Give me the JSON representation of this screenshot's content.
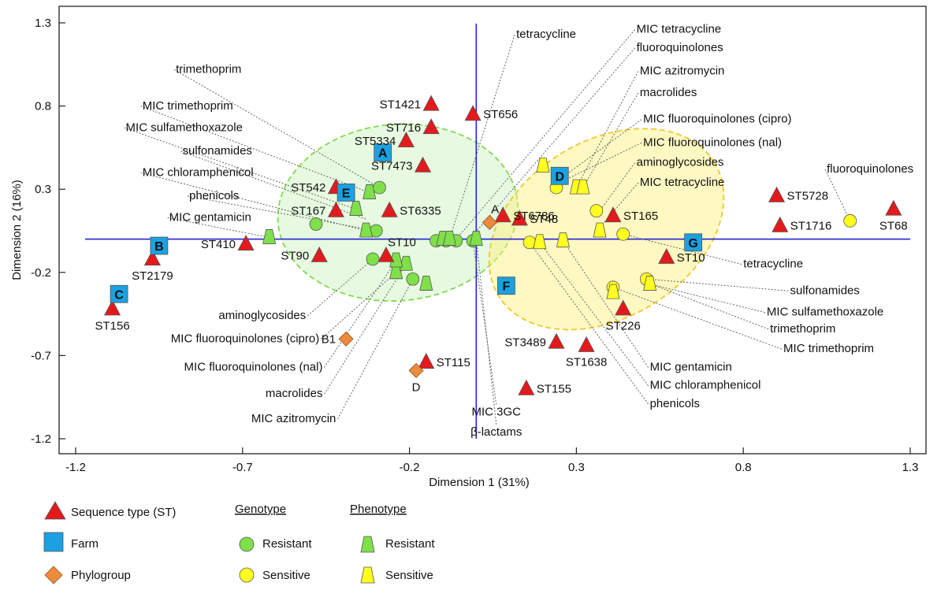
{
  "chart_data": {
    "type": "scatter",
    "xlabel": "Dimension 1 (31%)",
    "ylabel": "Dimension 2 (16%)",
    "xlim": [
      -1.2,
      1.3
    ],
    "ylim": [
      -1.2,
      1.3
    ],
    "xticks": [
      -1.2,
      -0.7,
      -0.2,
      0.3,
      0.8,
      1.3
    ],
    "xtick_labels": [
      "-1.2",
      "-0.7",
      "-0.2",
      "0.3",
      "0.8",
      "1.3"
    ],
    "yticks": [
      -1.2,
      -0.7,
      -0.2,
      0.3,
      0.8,
      1.3
    ],
    "ytick_labels": [
      "-1.2",
      "-0.7",
      "-0.2",
      "0.3",
      "0.8",
      "1.3"
    ],
    "colors": {
      "st": "#e31a1c",
      "farm": "#1ba1e2",
      "phylogroup": "#ee8a3c",
      "resistant": "#7fe04a",
      "sensitive": "#ffff1f",
      "axis": "#2323d6",
      "ellipse_green": "#7ddc4f",
      "ellipse_yellow": "#f0c92a"
    },
    "ellipses": [
      {
        "group": "resistant",
        "cx": -0.235,
        "cy": 0.16,
        "rx": 0.72,
        "ry": 0.53,
        "rot": -5
      },
      {
        "group": "sensitive",
        "cx": 0.39,
        "cy": 0.06,
        "rx": 0.76,
        "ry": 0.53,
        "rot": -32
      }
    ],
    "sequence_types": [
      {
        "label": "ST1421",
        "x": -0.135,
        "y": 0.81,
        "pos": "left"
      },
      {
        "label": "ST656",
        "x": -0.01,
        "y": 0.75,
        "pos": "right"
      },
      {
        "label": "ST716",
        "x": -0.135,
        "y": 0.67,
        "pos": "left"
      },
      {
        "label": "ST5334",
        "x": -0.21,
        "y": 0.59,
        "pos": "left"
      },
      {
        "label": "ST7473",
        "x": -0.16,
        "y": 0.44,
        "pos": "left"
      },
      {
        "label": "ST542",
        "x": -0.42,
        "y": 0.31,
        "pos": "left"
      },
      {
        "label": "ST167",
        "x": -0.42,
        "y": 0.17,
        "pos": "left"
      },
      {
        "label": "ST6335",
        "x": -0.26,
        "y": 0.17,
        "pos": "right"
      },
      {
        "label": "ST6786",
        "x": 0.08,
        "y": 0.14,
        "pos": "right"
      },
      {
        "label": "ST48",
        "x": 0.13,
        "y": 0.12,
        "pos": "right"
      },
      {
        "label": "ST165",
        "x": 0.41,
        "y": 0.14,
        "pos": "right"
      },
      {
        "label": "ST5728",
        "x": 0.9,
        "y": 0.26,
        "pos": "right"
      },
      {
        "label": "ST1716",
        "x": 0.91,
        "y": 0.08,
        "pos": "right"
      },
      {
        "label": "ST68",
        "x": 1.25,
        "y": 0.18,
        "pos": "below"
      },
      {
        "label": "ST410",
        "x": -0.69,
        "y": -0.03,
        "pos": "left"
      },
      {
        "label": "ST90",
        "x": -0.47,
        "y": -0.1,
        "pos": "left"
      },
      {
        "label": "ST10",
        "x": -0.27,
        "y": -0.1,
        "pos": "above"
      },
      {
        "label": "ST2179",
        "x": -0.97,
        "y": -0.12,
        "pos": "below"
      },
      {
        "label": "ST156",
        "x": -1.09,
        "y": -0.42,
        "pos": "below"
      },
      {
        "label": "ST10",
        "x": 0.57,
        "y": -0.11,
        "pos": "right"
      },
      {
        "label": "ST226",
        "x": 0.44,
        "y": -0.42,
        "pos": "below"
      },
      {
        "label": "ST3489",
        "x": 0.24,
        "y": -0.62,
        "pos": "left"
      },
      {
        "label": "ST1638",
        "x": 0.33,
        "y": -0.64,
        "pos": "below"
      },
      {
        "label": "ST115",
        "x": -0.15,
        "y": -0.74,
        "pos": "right"
      },
      {
        "label": "ST155",
        "x": 0.15,
        "y": -0.9,
        "pos": "right"
      }
    ],
    "farms": [
      {
        "label": "A",
        "x": -0.28,
        "y": 0.52
      },
      {
        "label": "B",
        "x": -0.95,
        "y": -0.04
      },
      {
        "label": "C",
        "x": -1.07,
        "y": -0.33
      },
      {
        "label": "D",
        "x": 0.25,
        "y": 0.38
      },
      {
        "label": "E",
        "x": -0.39,
        "y": 0.28
      },
      {
        "label": "F",
        "x": 0.09,
        "y": -0.28
      },
      {
        "label": "G",
        "x": 0.65,
        "y": -0.02
      }
    ],
    "phylogroups": [
      {
        "label": "A",
        "x": 0.04,
        "y": 0.1,
        "pos": "above"
      },
      {
        "label": "B1",
        "x": -0.39,
        "y": -0.6,
        "pos": "left"
      },
      {
        "label": "D",
        "x": -0.18,
        "y": -0.79,
        "pos": "below"
      }
    ],
    "genotype_resistant": [
      {
        "x": -0.29,
        "y": 0.31
      },
      {
        "x": -0.48,
        "y": 0.09
      },
      {
        "x": -0.3,
        "y": 0.05
      },
      {
        "x": -0.31,
        "y": -0.12
      },
      {
        "x": -0.19,
        "y": -0.24
      },
      {
        "x": -0.12,
        "y": -0.01
      },
      {
        "x": -0.09,
        "y": -0.01
      },
      {
        "x": -0.06,
        "y": -0.01
      },
      {
        "x": -0.01,
        "y": -0.01
      }
    ],
    "genotype_sensitive": [
      {
        "x": 0.24,
        "y": 0.31
      },
      {
        "x": 0.36,
        "y": 0.17
      },
      {
        "x": 0.44,
        "y": 0.03
      },
      {
        "x": 0.16,
        "y": -0.02
      },
      {
        "x": 0.41,
        "y": -0.29
      },
      {
        "x": 0.51,
        "y": -0.24
      },
      {
        "x": 1.12,
        "y": 0.11
      }
    ],
    "phenotype_resistant": [
      {
        "x": -0.32,
        "y": 0.28
      },
      {
        "x": -0.36,
        "y": 0.18
      },
      {
        "x": -0.33,
        "y": 0.05
      },
      {
        "x": -0.62,
        "y": 0.01
      },
      {
        "x": -0.1,
        "y": 0.0
      },
      {
        "x": -0.08,
        "y": 0.0
      },
      {
        "x": 0.0,
        "y": 0.0
      },
      {
        "x": -0.24,
        "y": -0.2
      },
      {
        "x": -0.21,
        "y": -0.15
      },
      {
        "x": -0.24,
        "y": -0.13
      },
      {
        "x": -0.15,
        "y": -0.27
      }
    ],
    "phenotype_sensitive": [
      {
        "x": 0.2,
        "y": 0.44
      },
      {
        "x": 0.3,
        "y": 0.31
      },
      {
        "x": 0.32,
        "y": 0.31
      },
      {
        "x": 0.37,
        "y": 0.05
      },
      {
        "x": 0.19,
        "y": -0.02
      },
      {
        "x": 0.26,
        "y": -0.01
      },
      {
        "x": 0.41,
        "y": -0.32
      },
      {
        "x": 0.52,
        "y": -0.27
      }
    ],
    "variable_labels": [
      {
        "text": "tetracycline",
        "lx": 0.12,
        "ly": 1.21,
        "anchor": "start",
        "px": -0.08,
        "py": 0.0
      },
      {
        "text": "MIC tetracycline",
        "lx": 0.48,
        "ly": 1.24,
        "anchor": "start",
        "px": -0.06,
        "py": 0.0
      },
      {
        "text": "fluoroquinolones",
        "lx": 0.48,
        "ly": 1.13,
        "anchor": "start",
        "px": -0.02,
        "py": 0.0
      },
      {
        "text": "MIC azitromycin",
        "lx": 0.49,
        "ly": 0.99,
        "anchor": "start",
        "px": 0.3,
        "py": 0.31
      },
      {
        "text": "macrolides",
        "lx": 0.49,
        "ly": 0.86,
        "anchor": "start",
        "px": 0.32,
        "py": 0.31
      },
      {
        "text": "MIC fluoroquinolones (cipro)",
        "lx": 0.5,
        "ly": 0.7,
        "anchor": "start",
        "px": 0.25,
        "py": 0.36
      },
      {
        "text": "MIC fluoroquinolones (nal)",
        "lx": 0.5,
        "ly": 0.56,
        "anchor": "start",
        "px": 0.25,
        "py": 0.34
      },
      {
        "text": "aminoglycosides",
        "lx": 0.48,
        "ly": 0.44,
        "anchor": "start",
        "px": 0.37,
        "py": 0.17
      },
      {
        "text": "MIC tetracycline",
        "lx": 0.49,
        "ly": 0.32,
        "anchor": "start",
        "px": 0.37,
        "py": 0.07
      },
      {
        "text": "fluoroquinolones",
        "lx": 1.05,
        "ly": 0.4,
        "anchor": "start",
        "px": 1.12,
        "py": 0.11
      },
      {
        "text": "trimethoprim",
        "lx": -0.9,
        "ly": 1.0,
        "anchor": "start",
        "px": -0.29,
        "py": 0.31
      },
      {
        "text": "MIC trimethoprim",
        "lx": -1.0,
        "ly": 0.78,
        "anchor": "start",
        "px": -0.32,
        "py": 0.28
      },
      {
        "text": "MIC sulfamethoxazole",
        "lx": -1.05,
        "ly": 0.65,
        "anchor": "start",
        "px": -0.36,
        "py": 0.18
      },
      {
        "text": "sulfonamides",
        "lx": -0.88,
        "ly": 0.51,
        "anchor": "start",
        "px": -0.33,
        "py": 0.12
      },
      {
        "text": "MIC chloramphenicol",
        "lx": -1.0,
        "ly": 0.38,
        "anchor": "start",
        "px": -0.33,
        "py": 0.05
      },
      {
        "text": "phenicols",
        "lx": -0.86,
        "ly": 0.24,
        "anchor": "start",
        "px": -0.3,
        "py": 0.05
      },
      {
        "text": "MIC gentamicin",
        "lx": -0.92,
        "ly": 0.11,
        "anchor": "start",
        "px": -0.62,
        "py": 0.01
      },
      {
        "text": "tetracycline",
        "lx": 0.8,
        "ly": -0.17,
        "anchor": "start",
        "px": 0.44,
        "py": 0.03
      },
      {
        "text": "sulfonamides",
        "lx": 0.94,
        "ly": -0.33,
        "anchor": "start",
        "px": 0.51,
        "py": -0.24
      },
      {
        "text": "MIC sulfamethoxazole",
        "lx": 0.87,
        "ly": -0.46,
        "anchor": "start",
        "px": 0.52,
        "py": -0.27
      },
      {
        "text": "trimethoprim",
        "lx": 0.88,
        "ly": -0.56,
        "anchor": "start",
        "px": 0.51,
        "py": -0.26
      },
      {
        "text": "MIC trimethoprim",
        "lx": 0.92,
        "ly": -0.68,
        "anchor": "start",
        "px": 0.41,
        "py": -0.29
      },
      {
        "text": "MIC gentamicin",
        "lx": 0.52,
        "ly": -0.79,
        "anchor": "start",
        "px": 0.26,
        "py": -0.01
      },
      {
        "text": "MIC chloramphenicol",
        "lx": 0.52,
        "ly": -0.9,
        "anchor": "start",
        "px": 0.19,
        "py": -0.02
      },
      {
        "text": "phenicols",
        "lx": 0.52,
        "ly": -1.01,
        "anchor": "start",
        "px": 0.16,
        "py": -0.02
      },
      {
        "text": "aminoglycosides",
        "lx": -0.51,
        "ly": -0.48,
        "anchor": "end",
        "px": -0.31,
        "py": -0.12
      },
      {
        "text": "MIC fluoroquinolones (cipro)",
        "lx": -0.47,
        "ly": -0.62,
        "anchor": "end",
        "px": -0.24,
        "py": -0.2
      },
      {
        "text": "MIC fluoroquinolones (nal)",
        "lx": -0.46,
        "ly": -0.79,
        "anchor": "end",
        "px": -0.24,
        "py": -0.13
      },
      {
        "text": "macrolides",
        "lx": -0.46,
        "ly": -0.95,
        "anchor": "end",
        "px": -0.21,
        "py": -0.15
      },
      {
        "text": "MIC azitromycin",
        "lx": -0.42,
        "ly": -1.1,
        "anchor": "end",
        "px": -0.19,
        "py": -0.24
      },
      {
        "text": "MIC 3GC",
        "lx": 0.06,
        "ly": -1.06,
        "anchor": "middle",
        "px": -0.01,
        "py": -0.01
      },
      {
        "text": "β-lactams",
        "lx": 0.06,
        "ly": -1.18,
        "anchor": "middle",
        "px": 0.0,
        "py": 0.0
      }
    ],
    "legend": {
      "st": "Sequence type (ST)",
      "farm": "Farm",
      "phylogroup": "Phylogroup",
      "genotype_heading": "Genotype",
      "phenotype_heading": "Phenotype",
      "resistant": "Resistant",
      "sensitive": "Sensitive"
    }
  }
}
